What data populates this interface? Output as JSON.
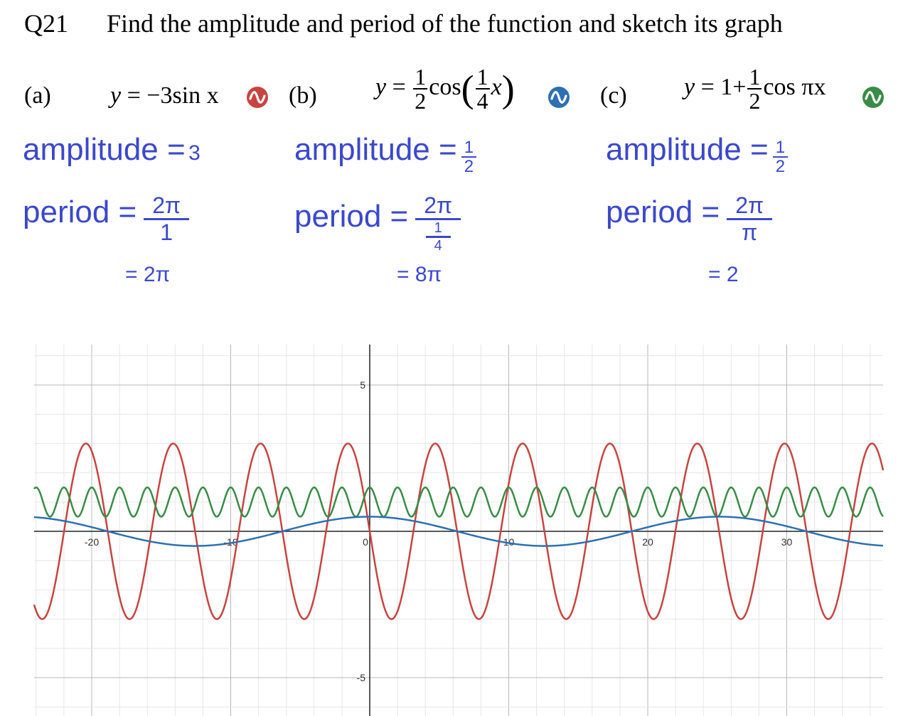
{
  "question": {
    "number": "Q21",
    "text": "Find the amplitude and period of the function and sketch its graph"
  },
  "parts": [
    {
      "label": "(a)",
      "equation": {
        "lhs": "y",
        "rhs": "−3sin x"
      },
      "color": "#c74440",
      "amplitude": {
        "label": "amplitude =",
        "value": "3"
      },
      "period": {
        "label": "period =",
        "num": "2π",
        "den": "1",
        "result": "= 2π"
      }
    },
    {
      "label": "(b)",
      "equation": {
        "lhs": "y",
        "coef_num": "1",
        "coef_den": "2",
        "func": "cos",
        "arg_num": "1",
        "arg_den": "4",
        "var": "x"
      },
      "color": "#2d70b3",
      "amplitude": {
        "label": "amplitude =",
        "num": "1",
        "den": "2"
      },
      "period": {
        "label": "period =",
        "num": "2π",
        "den_num": "1",
        "den_den": "4",
        "result": "= 8π"
      }
    },
    {
      "label": "(c)",
      "equation": {
        "lhs": "y",
        "prefix": "1+",
        "coef_num": "1",
        "coef_den": "2",
        "func": "cos πx"
      },
      "color": "#388c46",
      "amplitude": {
        "label": "amplitude =",
        "num": "1",
        "den": "2"
      },
      "period": {
        "label": "period =",
        "num": "2π",
        "den": "π",
        "result": "= 2"
      }
    }
  ],
  "chart_data": {
    "type": "line",
    "x_range": [
      -25,
      36
    ],
    "y_range": [
      -6.2,
      6.4
    ],
    "x_ticks": [
      -20,
      -10,
      0,
      10,
      20,
      30
    ],
    "y_ticks": [
      5,
      -5
    ],
    "grid": true,
    "series": [
      {
        "expression": "y = -3 sin x",
        "color": "#c74440",
        "amplitude": 3,
        "period": 6.2832,
        "midline": 0
      },
      {
        "expression": "y = 1/2 cos(x/4)",
        "color": "#2d70b3",
        "amplitude": 0.5,
        "period": 25.1327,
        "midline": 0
      },
      {
        "expression": "y = 1 + 1/2 cos(πx)",
        "color": "#388c46",
        "amplitude": 0.5,
        "period": 2,
        "midline": 1
      }
    ]
  }
}
